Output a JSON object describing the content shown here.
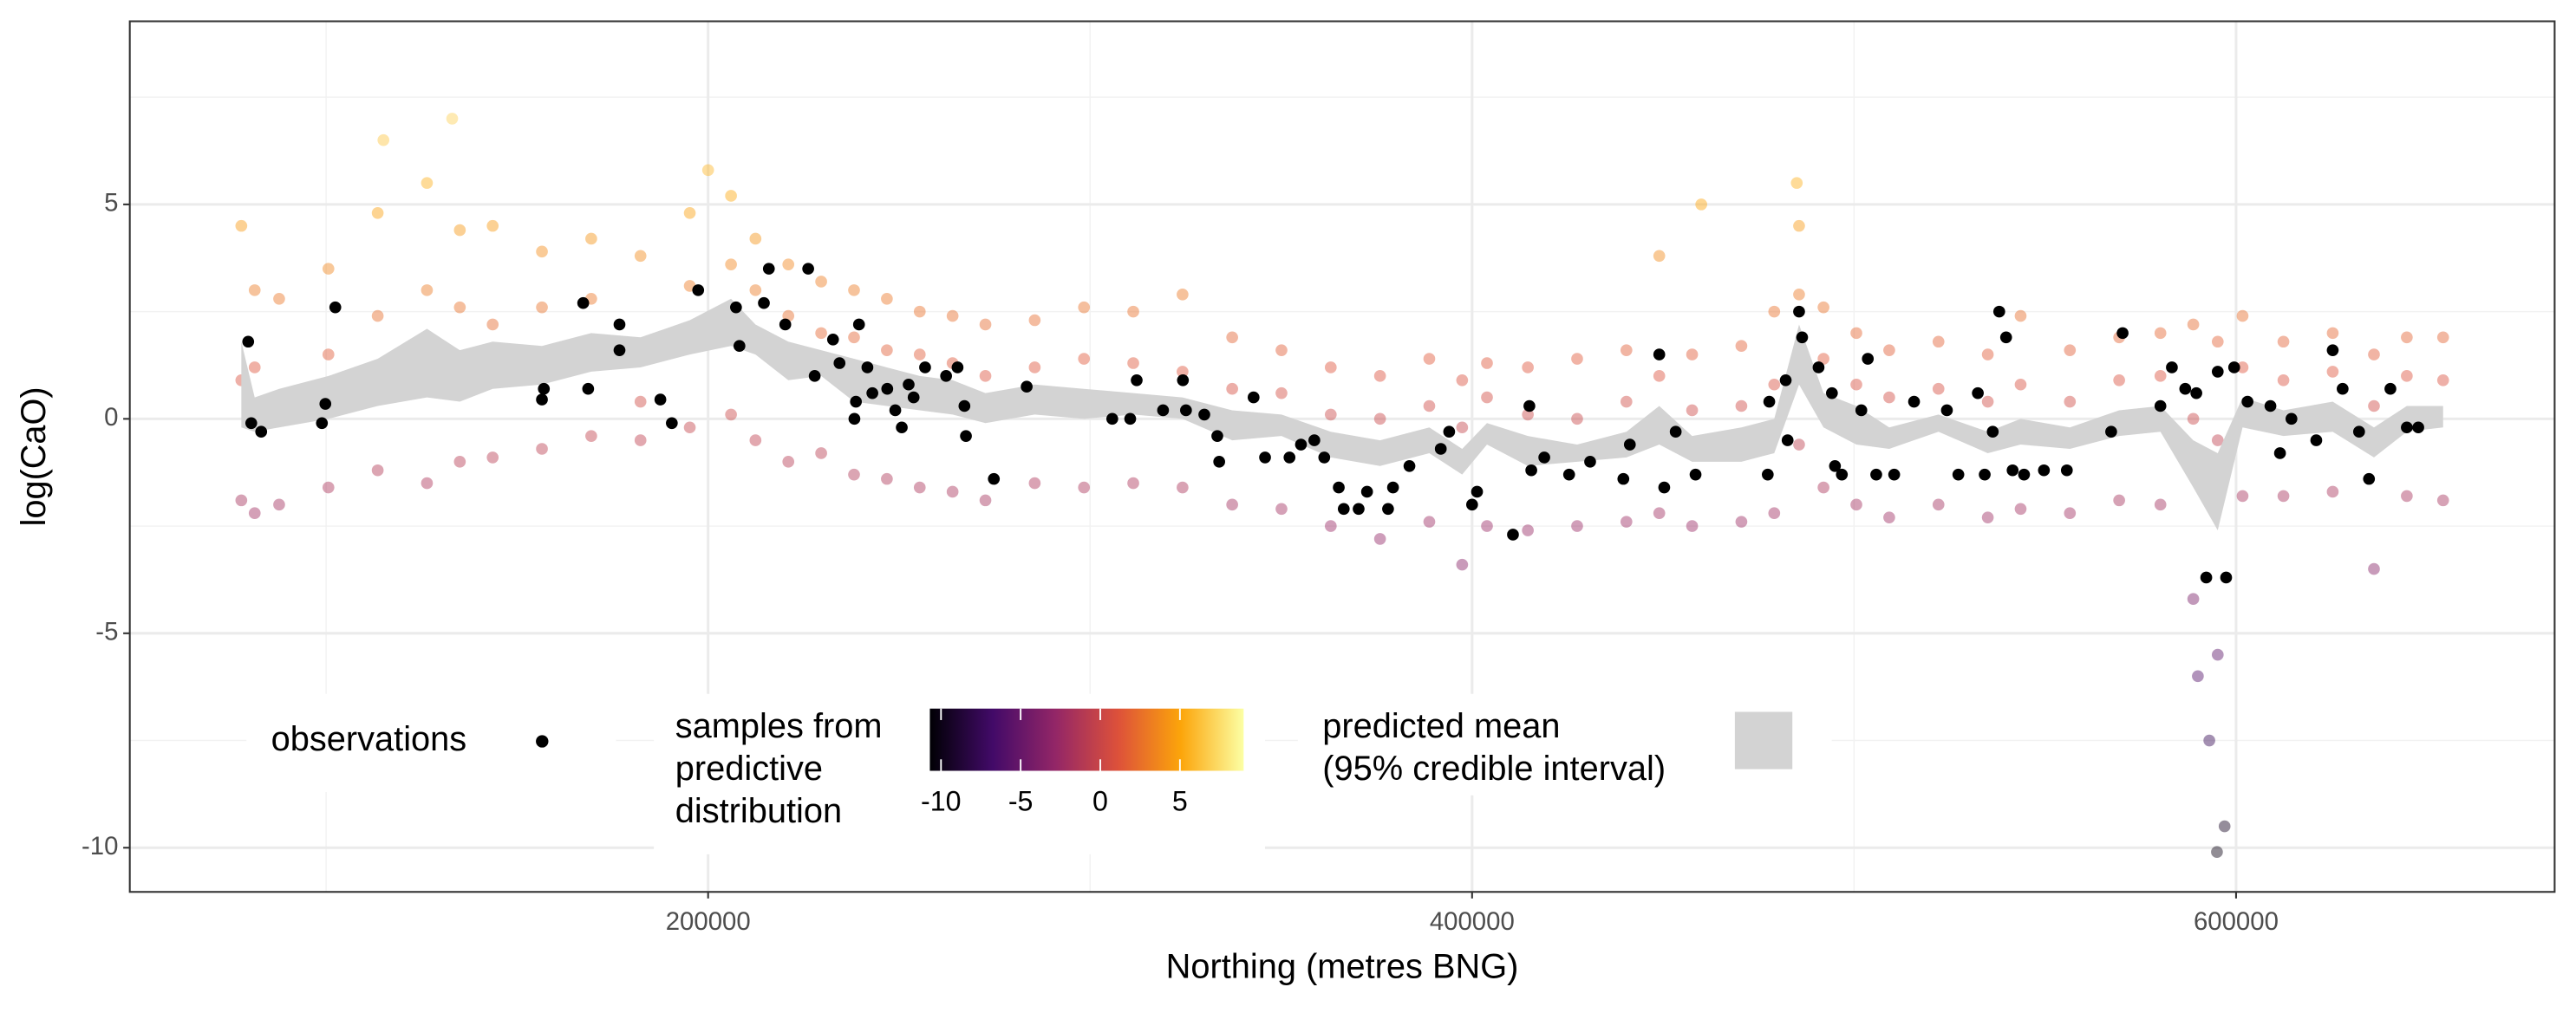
{
  "chart_data": {
    "type": "scatter",
    "x_label": "Northing (metres BNG)",
    "y_label": "log(CaO)",
    "xlim": [
      48600,
      683400
    ],
    "ylim": [
      -11.03,
      9.27
    ],
    "xticks": [
      200000,
      400000,
      600000
    ],
    "yticks": [
      -10,
      -5,
      0,
      5
    ],
    "xticks_minor": [
      100000,
      300000,
      500000
    ],
    "yticks_minor": [
      -7.5,
      -2.5,
      2.5,
      7.5
    ],
    "grid": true,
    "legend": "bottom-left",
    "series": [
      {
        "name": [
          "observations"
        ],
        "color": "#000000",
        "x": [
          79600,
          80400,
          83000,
          99800,
          98900,
          102400,
          167300,
          168600,
          157000,
          156500,
          176800,
          176800,
          187500,
          190500,
          197400,
          207300,
          208200,
          214600,
          215900,
          220200,
          226200,
          227900,
          232700,
          234400,
          238700,
          238300,
          239500,
          241700,
          243000,
          246900,
          249000,
          250700,
          252500,
          253800,
          256800,
          262300,
          265300,
          267100,
          267500,
          274800,
          283400,
          305800,
          310500,
          312200,
          319100,
          324300,
          325100,
          329900,
          333300,
          333800,
          342800,
          345800,
          352200,
          355200,
          358700,
          361300,
          365100,
          366400,
          370300,
          372500,
          378000,
          379300,
          383600,
          391800,
          394000,
          400000,
          401300,
          410700,
          415000,
          415500,
          418900,
          425400,
          430900,
          439600,
          441300,
          449000,
          450300,
          453300,
          458500,
          477800,
          477400,
          482100,
          482600,
          485600,
          486400,
          490700,
          494200,
          495000,
          496800,
          501900,
          503600,
          505800,
          510500,
          515700,
          524300,
          527300,
          532400,
          534200,
          536300,
          538000,
          539800,
          541500,
          544500,
          549700,
          555700,
          567300,
          570300,
          580200,
          583200,
          586700,
          589600,
          592200,
          595200,
          597400,
          599500,
          603000,
          609000,
          611500,
          614500,
          621000,
          625300,
          627900,
          632200,
          634800,
          640400,
          644700,
          647700
        ],
        "y": [
          1.8,
          -0.1,
          -0.3,
          0.35,
          -0.1,
          2.6,
          2.7,
          0.7,
          0.7,
          0.45,
          2.2,
          1.6,
          0.45,
          -0.1,
          3.0,
          2.6,
          1.7,
          2.7,
          3.5,
          2.2,
          3.5,
          1.0,
          1.85,
          1.3,
          0.4,
          0.0,
          2.2,
          1.2,
          0.6,
          0.7,
          0.2,
          -0.2,
          0.8,
          0.5,
          1.2,
          1.0,
          1.2,
          0.3,
          -0.4,
          -1.4,
          0.75,
          0,
          0.0,
          0.9,
          0.2,
          0.9,
          0.2,
          0.1,
          -0.4,
          -1.0,
          0.5,
          -0.9,
          -0.9,
          -0.6,
          -0.5,
          -0.9,
          -1.6,
          -2.1,
          -2.1,
          -1.7,
          -2.1,
          -1.6,
          -1.1,
          -0.7,
          -0.3,
          -2.0,
          -1.7,
          -2.7,
          0.3,
          -1.2,
          -0.9,
          -1.3,
          -1.0,
          -1.4,
          -0.6,
          1.5,
          -1.6,
          -0.3,
          -1.3,
          0.4,
          -1.3,
          0.9,
          -0.5,
          2.5,
          1.9,
          1.2,
          0.6,
          -1.1,
          -1.3,
          0.2,
          1.4,
          -1.3,
          -1.3,
          0.4,
          0.2,
          -1.3,
          0.6,
          -1.3,
          -0.3,
          2.5,
          1.9,
          -1.2,
          -1.3,
          -1.2,
          -1.2,
          -0.3,
          2.0,
          0.3,
          1.2,
          0.7,
          0.6,
          -3.7,
          1.1,
          -3.7,
          1.2,
          0.4,
          0.3,
          -0.8,
          0.0,
          -0.5,
          1.6,
          0.7,
          -0.3,
          -1.4,
          0.7,
          -0.2,
          -0.2
        ]
      },
      {
        "name": [
          "samples from",
          "predictive",
          "distribution"
        ],
        "colors": [
          "#000004",
          "#420a68",
          "#932667",
          "#dd513a",
          "#fca50a",
          "#fcffa4"
        ],
        "colorlim": [
          -10.7,
          9.0
        ],
        "colorticks": [
          -10,
          -5,
          0,
          5
        ],
        "x": [
          77800,
          77800,
          77800,
          81300,
          81300,
          81300,
          87700,
          87700,
          87700,
          100600,
          100600,
          100600,
          113500,
          113500,
          113500,
          126400,
          126400,
          126400,
          135000,
          135000,
          135000,
          143600,
          143600,
          143600,
          156500,
          156500,
          156500,
          169400,
          169400,
          169400,
          182300,
          182300,
          182300,
          195200,
          195200,
          195200,
          206000,
          206000,
          206000,
          212400,
          212400,
          212400,
          221000,
          221000,
          221000,
          229600,
          229600,
          229600,
          238200,
          238200,
          238200,
          246800,
          246800,
          246800,
          255400,
          255400,
          255400,
          264000,
          264000,
          264000,
          272600,
          272600,
          272600,
          285500,
          285500,
          285500,
          298400,
          298400,
          298400,
          311300,
          311300,
          311300,
          324200,
          324200,
          324200,
          337200,
          337200,
          337200,
          350100,
          350100,
          350100,
          363000,
          363000,
          363000,
          375900,
          375900,
          375900,
          388800,
          388800,
          388800,
          397400,
          397400,
          397400,
          403900,
          403900,
          403900,
          414600,
          414600,
          414600,
          427500,
          427500,
          427500,
          440400,
          440400,
          440400,
          449000,
          449000,
          449000,
          457600,
          457600,
          457600,
          470500,
          470500,
          470500,
          479100,
          479100,
          479100,
          485600,
          485600,
          485600,
          492000,
          492000,
          492000,
          500600,
          500600,
          500600,
          509200,
          509200,
          509200,
          522100,
          522100,
          522100,
          535000,
          535000,
          535000,
          543600,
          543600,
          543600,
          556500,
          556500,
          556500,
          569400,
          569400,
          569400,
          580200,
          580200,
          580200,
          588800,
          588800,
          588800,
          595200,
          595200,
          595200,
          601700,
          601700,
          601700,
          612400,
          612400,
          612400,
          625300,
          625300,
          625300,
          636100,
          636100,
          636100,
          644700,
          644700,
          644700,
          654200,
          654200,
          654200,
          115000,
          133000,
          200000,
          460000,
          485000,
          590000,
          593000,
          595000,
          597000
        ],
        "y": [
          4.5,
          0.9,
          -1.9,
          3.0,
          1.2,
          -2.2,
          2.8,
          0.4,
          -2.0,
          3.5,
          1.5,
          -1.6,
          4.8,
          2.4,
          -1.2,
          5.5,
          3.0,
          -1.5,
          4.4,
          2.6,
          -1.0,
          4.5,
          2.2,
          -0.9,
          3.9,
          2.6,
          -0.7,
          4.2,
          2.8,
          -0.4,
          3.8,
          0.4,
          -0.5,
          4.8,
          3.1,
          -0.2,
          5.2,
          3.6,
          0.1,
          4.2,
          3.0,
          -0.5,
          3.6,
          2.4,
          -1.0,
          3.2,
          2.0,
          -0.8,
          3.0,
          1.9,
          -1.3,
          2.8,
          1.6,
          -1.4,
          2.5,
          1.5,
          -1.6,
          2.4,
          1.3,
          -1.7,
          2.2,
          1.0,
          -1.9,
          2.3,
          1.2,
          -1.5,
          2.6,
          1.4,
          -1.6,
          2.5,
          1.3,
          -1.5,
          2.9,
          1.1,
          -1.6,
          1.9,
          0.7,
          -2.0,
          1.6,
          0.6,
          -2.1,
          1.2,
          0.1,
          -2.5,
          1.0,
          0.0,
          -2.8,
          1.4,
          0.3,
          -2.4,
          0.9,
          -0.2,
          -3.4,
          1.3,
          0.5,
          -2.5,
          1.2,
          0.1,
          -2.6,
          1.4,
          0.0,
          -2.5,
          1.6,
          0.4,
          -2.4,
          3.8,
          1.0,
          -2.2,
          1.5,
          0.2,
          -2.5,
          1.7,
          0.3,
          -2.4,
          2.5,
          0.8,
          -2.2,
          4.5,
          2.9,
          -0.6,
          2.6,
          1.4,
          -1.6,
          2.0,
          0.8,
          -2.0,
          1.6,
          0.5,
          -2.3,
          1.8,
          0.7,
          -2.0,
          1.5,
          0.4,
          -2.3,
          2.4,
          0.8,
          -2.1,
          1.6,
          0.4,
          -2.2,
          1.9,
          0.9,
          -1.9,
          2.0,
          1.0,
          -2.0,
          2.2,
          0.0,
          -4.2,
          1.8,
          -0.5,
          -5.5,
          2.4,
          1.2,
          -1.8,
          1.8,
          0.9,
          -1.8,
          2.0,
          1.1,
          -1.7,
          1.5,
          0.3,
          -3.5,
          1.9,
          1.0,
          -1.8,
          1.9,
          0.9,
          -1.9,
          6.5,
          7.0,
          5.8,
          5.0,
          5.5,
          -6.0,
          -7.5,
          -10.1,
          -9.5
        ]
      },
      {
        "name": [
          "predicted mean",
          "(95% credible interval)"
        ],
        "color": "#d3d3d3",
        "x": [
          77800,
          81300,
          87700,
          100600,
          113500,
          126400,
          135000,
          143600,
          156500,
          169400,
          182300,
          195200,
          206000,
          212400,
          221000,
          229600,
          238200,
          246800,
          255400,
          264000,
          272600,
          285500,
          298400,
          311300,
          324200,
          337200,
          350100,
          363000,
          375900,
          388800,
          397400,
          403900,
          414600,
          427500,
          440400,
          449000,
          457600,
          470500,
          479100,
          485600,
          492000,
          500600,
          509200,
          522100,
          535000,
          543600,
          556500,
          569400,
          580200,
          588800,
          595200,
          601700,
          612400,
          625300,
          636100,
          644700,
          654200
        ],
        "lower": [
          -0.2,
          -0.3,
          -0.2,
          0.0,
          0.3,
          0.5,
          0.4,
          0.7,
          0.8,
          1.1,
          1.2,
          1.5,
          1.7,
          1.5,
          0.9,
          1.0,
          0.4,
          0.3,
          0.2,
          0.1,
          -0.1,
          0.1,
          0.0,
          0.1,
          0.0,
          -0.5,
          -0.4,
          -0.9,
          -1.1,
          -0.8,
          -1.3,
          -0.6,
          -1.1,
          -1.0,
          -0.9,
          -0.6,
          -1.0,
          -1.0,
          -0.8,
          0.8,
          -0.2,
          -0.6,
          -0.7,
          -0.3,
          -0.8,
          -0.6,
          -0.7,
          -0.4,
          -0.3,
          -1.6,
          -2.6,
          -0.2,
          -0.4,
          -0.3,
          -0.9,
          -0.3,
          -0.2
        ],
        "upper": [
          1.8,
          0.5,
          0.7,
          1.0,
          1.4,
          2.1,
          1.6,
          1.8,
          1.7,
          2.0,
          1.9,
          2.3,
          2.8,
          2.2,
          1.8,
          1.6,
          1.4,
          1.2,
          1.0,
          0.9,
          0.6,
          0.8,
          0.7,
          0.6,
          0.5,
          0.2,
          0.1,
          -0.3,
          -0.5,
          -0.2,
          -0.7,
          -0.1,
          -0.4,
          -0.6,
          -0.3,
          0.3,
          -0.4,
          -0.2,
          0.0,
          2.2,
          0.6,
          0.3,
          -0.2,
          0.1,
          -0.3,
          0.0,
          -0.2,
          0.2,
          0.3,
          -0.5,
          -0.8,
          0.5,
          0.2,
          0.4,
          -0.2,
          0.3,
          0.3
        ]
      }
    ]
  }
}
